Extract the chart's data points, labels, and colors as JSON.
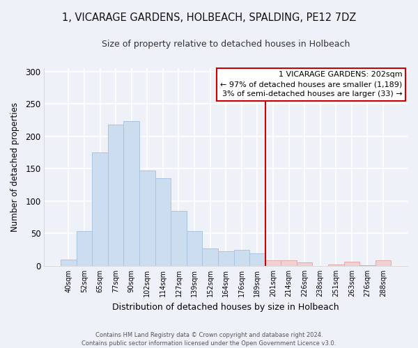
{
  "title": "1, VICARAGE GARDENS, HOLBEACH, SPALDING, PE12 7DZ",
  "subtitle": "Size of property relative to detached houses in Holbeach",
  "xlabel": "Distribution of detached houses by size in Holbeach",
  "ylabel": "Number of detached properties",
  "footer_line1": "Contains HM Land Registry data © Crown copyright and database right 2024.",
  "footer_line2": "Contains public sector information licensed under the Open Government Licence v3.0.",
  "bin_labels": [
    "40sqm",
    "52sqm",
    "65sqm",
    "77sqm",
    "90sqm",
    "102sqm",
    "114sqm",
    "127sqm",
    "139sqm",
    "152sqm",
    "164sqm",
    "176sqm",
    "189sqm",
    "201sqm",
    "214sqm",
    "226sqm",
    "238sqm",
    "251sqm",
    "263sqm",
    "276sqm",
    "288sqm"
  ],
  "bar_heights": [
    10,
    54,
    175,
    218,
    223,
    147,
    135,
    85,
    54,
    27,
    23,
    25,
    19,
    8,
    9,
    5,
    0,
    2,
    6,
    1,
    9
  ],
  "bar_color_left": "#cdddf0",
  "bar_color_right": "#f0d0d0",
  "bar_edge_color": "#aac4e0",
  "bar_edge_right_color": "#e0aaaa",
  "vline_x_index": 13,
  "vline_color": "#cc0000",
  "annotation_title": "1 VICARAGE GARDENS: 202sqm",
  "annotation_line1": "← 97% of detached houses are smaller (1,189)",
  "annotation_line2": "3% of semi-detached houses are larger (33) →",
  "annotation_box_color": "#ffffff",
  "annotation_box_edge": "#cc0000",
  "ylim": [
    0,
    305
  ],
  "yticks": [
    0,
    50,
    100,
    150,
    200,
    250,
    300
  ],
  "background_color": "#eef2f8",
  "plot_bg_color": "#eef2f8",
  "grid_color": "#ffffff"
}
